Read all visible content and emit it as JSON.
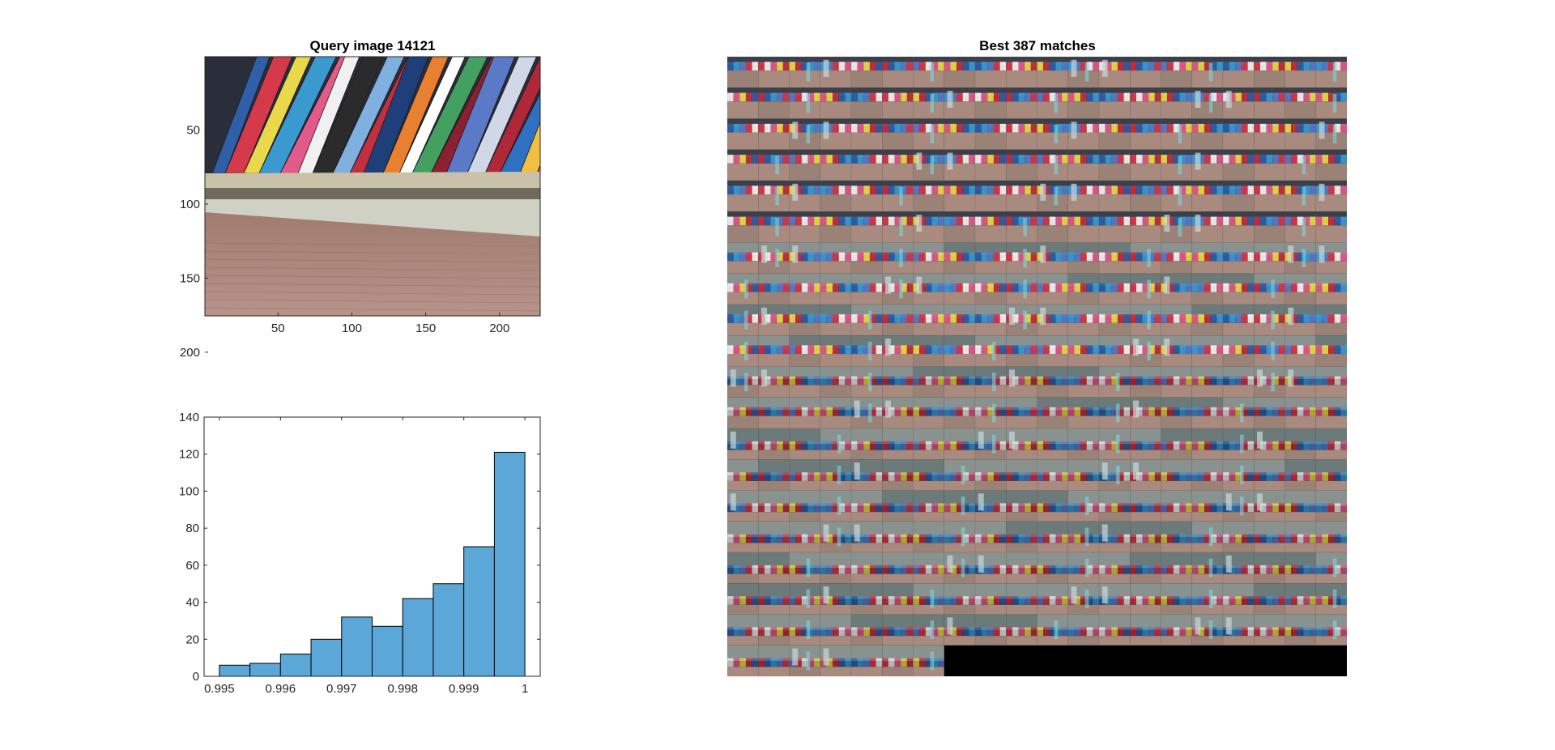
{
  "query_panel": {
    "title": "Query image 14121",
    "x_ticks": [
      50,
      100,
      150,
      200
    ],
    "y_ticks": [
      50,
      100,
      150,
      200
    ],
    "x_range": [
      0.5,
      227.5
    ],
    "y_range": [
      0.5,
      175.5
    ],
    "image_description_icon": "bookshelf-photo"
  },
  "matches_panel": {
    "title": "Best 387 matches",
    "grid_columns": 20,
    "grid_rows": 20,
    "match_count": 387
  },
  "chart_data": {
    "type": "bar",
    "title": "",
    "xlabel": "",
    "ylabel": "",
    "bin_edges": [
      0.995,
      0.9955,
      0.996,
      0.9965,
      0.997,
      0.9975,
      0.998,
      0.9985,
      0.999,
      0.9995,
      1.0
    ],
    "values": [
      6,
      7,
      12,
      20,
      32,
      27,
      42,
      50,
      70,
      121
    ],
    "xlim": [
      0.99475,
      1.00025
    ],
    "ylim": [
      0,
      140
    ],
    "x_ticks": [
      0.995,
      0.996,
      0.997,
      0.998,
      0.999,
      1
    ],
    "y_ticks": [
      0,
      20,
      40,
      60,
      80,
      100,
      120,
      140
    ],
    "bar_color": "#5ba7d8",
    "edge_color": "#000000",
    "grid": false
  }
}
